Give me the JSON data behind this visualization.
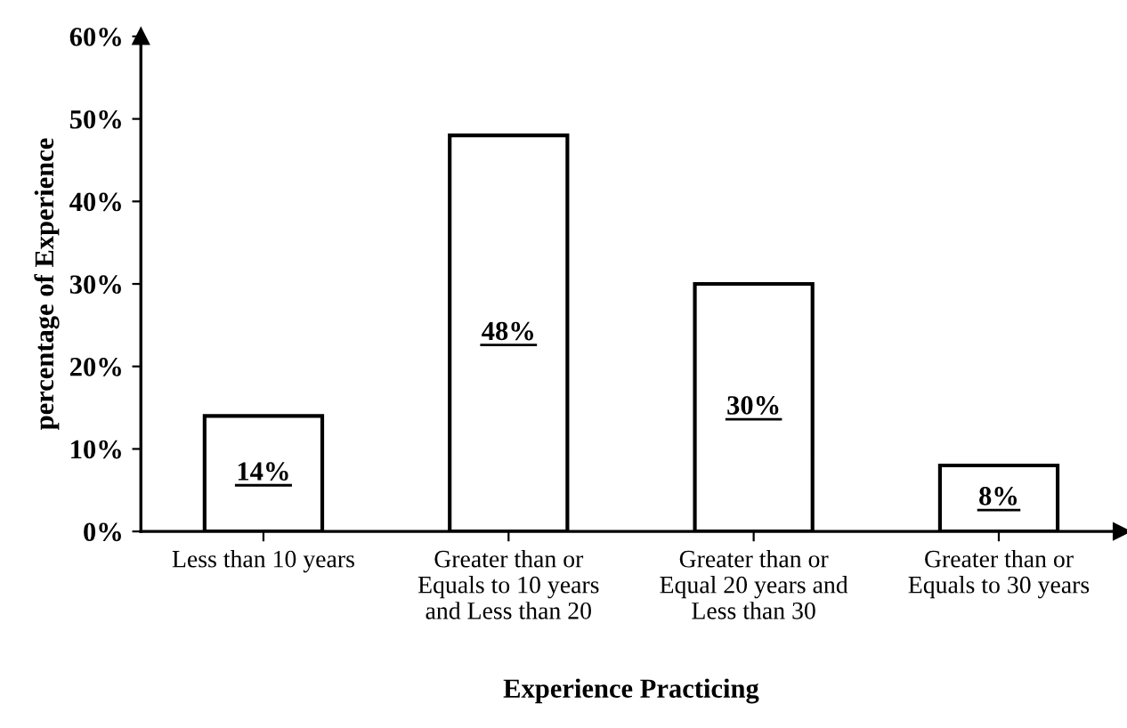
{
  "chart_data": {
    "type": "bar",
    "categories": [
      "Less than 10 years",
      "Greater than or\nEquals to 10 years\nand Less than 20",
      "Greater than or\nEqual 20 years and\nLess than 30",
      "Greater than or\nEquals to 30 years"
    ],
    "values": [
      14,
      48,
      30,
      8
    ],
    "value_labels": [
      "14%",
      "48%",
      "30%",
      "8%"
    ],
    "color": "#ffffff",
    "xlabel": "Experience Practicing",
    "ylabel": "percentage of Experience",
    "ylim": [
      0,
      60
    ],
    "yticks": [
      {
        "value": 0,
        "label": "0%"
      },
      {
        "value": 10,
        "label": "10%"
      },
      {
        "value": 20,
        "label": "20%"
      },
      {
        "value": 30,
        "label": "30%"
      },
      {
        "value": 40,
        "label": "40%"
      },
      {
        "value": 50,
        "label": "50%"
      },
      {
        "value": 60,
        "label": "60%"
      }
    ],
    "grid": false,
    "legend": false
  }
}
